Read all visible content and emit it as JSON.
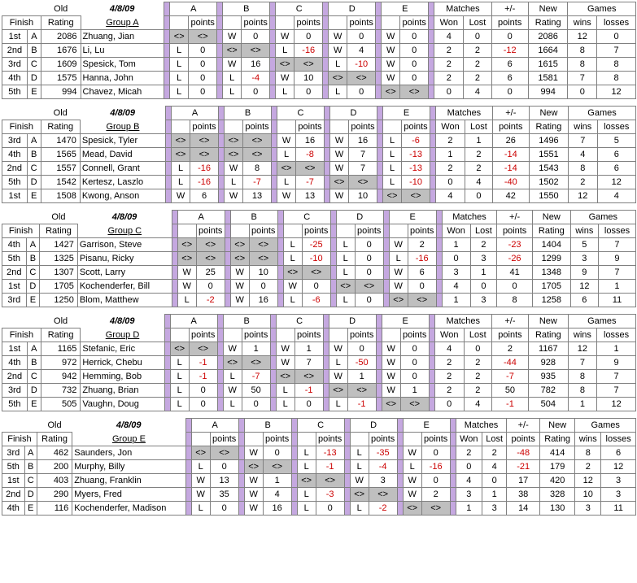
{
  "date": "4/8/09",
  "headers": {
    "finish": "Finish",
    "old": "Old",
    "rating": "Rating",
    "points": "points",
    "matches": "Matches",
    "won": "Won",
    "lost": "Lost",
    "pm": "+/-",
    "pm_points": "points",
    "new": "New",
    "new_rating": "Rating",
    "games": "Games",
    "wins": "wins",
    "losses": "losses"
  },
  "groups": [
    {
      "title": "Group A",
      "cols": [
        "A",
        "B",
        "C",
        "D",
        "E"
      ],
      "rows": [
        {
          "finish": "1st",
          "letter": "A",
          "rating": 2086,
          "name": "Zhuang, Jian",
          "cells": [
            [
              "<>",
              "<>",
              true
            ],
            [
              "W",
              "0",
              false
            ],
            [
              "W",
              "0",
              false
            ],
            [
              "W",
              "0",
              false
            ],
            [
              "W",
              "0",
              false
            ]
          ],
          "won": 4,
          "lost": 0,
          "pm": 0,
          "newr": 2086,
          "gw": 12,
          "gl": 0
        },
        {
          "finish": "2nd",
          "letter": "B",
          "rating": 1676,
          "name": "Li, Lu",
          "cells": [
            [
              "L",
              "0",
              false
            ],
            [
              "<>",
              "<>",
              true
            ],
            [
              "L",
              "-16",
              false
            ],
            [
              "W",
              "4",
              false
            ],
            [
              "W",
              "0",
              false
            ]
          ],
          "won": 2,
          "lost": 2,
          "pm": -12,
          "newr": 1664,
          "gw": 8,
          "gl": 7
        },
        {
          "finish": "3rd",
          "letter": "C",
          "rating": 1609,
          "name": "Spesick, Tom",
          "cells": [
            [
              "L",
              "0",
              false
            ],
            [
              "W",
              "16",
              false
            ],
            [
              "<>",
              "<>",
              true
            ],
            [
              "L",
              "-10",
              false
            ],
            [
              "W",
              "0",
              false
            ]
          ],
          "won": 2,
          "lost": 2,
          "pm": 6,
          "newr": 1615,
          "gw": 8,
          "gl": 8
        },
        {
          "finish": "4th",
          "letter": "D",
          "rating": 1575,
          "name": "Hanna, John",
          "cells": [
            [
              "L",
              "0",
              false
            ],
            [
              "L",
              "-4",
              false
            ],
            [
              "W",
              "10",
              false
            ],
            [
              "<>",
              "<>",
              true
            ],
            [
              "W",
              "0",
              false
            ]
          ],
          "won": 2,
          "lost": 2,
          "pm": 6,
          "newr": 1581,
          "gw": 7,
          "gl": 8
        },
        {
          "finish": "5th",
          "letter": "E",
          "rating": 994,
          "name": "Chavez, Micah",
          "cells": [
            [
              "L",
              "0",
              false
            ],
            [
              "L",
              "0",
              false
            ],
            [
              "L",
              "0",
              false
            ],
            [
              "L",
              "0",
              false
            ],
            [
              "<>",
              "<>",
              true
            ]
          ],
          "won": 0,
          "lost": 4,
          "pm": 0,
          "newr": 994,
          "gw": 0,
          "gl": 12
        }
      ]
    },
    {
      "title": "Group B",
      "cols": [
        "A",
        "B",
        "C",
        "D",
        "E"
      ],
      "rows": [
        {
          "finish": "3rd",
          "letter": "A",
          "rating": 1470,
          "name": "Spesick, Tyler",
          "cells": [
            [
              "<>",
              "<>",
              true
            ],
            [
              "<>",
              "<>",
              true
            ],
            [
              "W",
              "16",
              false
            ],
            [
              "W",
              "16",
              false
            ],
            [
              "L",
              "-6",
              false
            ]
          ],
          "won": 2,
          "lost": 1,
          "pm": 26,
          "newr": 1496,
          "gw": 7,
          "gl": 5
        },
        {
          "finish": "4th",
          "letter": "B",
          "rating": 1565,
          "name": "Mead, David",
          "cells": [
            [
              "<>",
              "<>",
              true
            ],
            [
              "<>",
              "<>",
              true
            ],
            [
              "L",
              "-8",
              false
            ],
            [
              "W",
              "7",
              false
            ],
            [
              "L",
              "-13",
              false
            ]
          ],
          "won": 1,
          "lost": 2,
          "pm": -14,
          "newr": 1551,
          "gw": 4,
          "gl": 6
        },
        {
          "finish": "2nd",
          "letter": "C",
          "rating": 1557,
          "name": "Connell, Grant",
          "cells": [
            [
              "L",
              "-16",
              false
            ],
            [
              "W",
              "8",
              false
            ],
            [
              "<>",
              "<>",
              true
            ],
            [
              "W",
              "7",
              false
            ],
            [
              "L",
              "-13",
              false
            ]
          ],
          "won": 2,
          "lost": 2,
          "pm": -14,
          "newr": 1543,
          "gw": 8,
          "gl": 6
        },
        {
          "finish": "5th",
          "letter": "D",
          "rating": 1542,
          "name": "Kertesz, Laszlo",
          "cells": [
            [
              "L",
              "-16",
              false
            ],
            [
              "L",
              "-7",
              false
            ],
            [
              "L",
              "-7",
              false
            ],
            [
              "<>",
              "<>",
              true
            ],
            [
              "L",
              "-10",
              false
            ]
          ],
          "won": 0,
          "lost": 4,
          "pm": -40,
          "newr": 1502,
          "gw": 2,
          "gl": 12
        },
        {
          "finish": "1st",
          "letter": "E",
          "rating": 1508,
          "name": "Kwong, Anson",
          "cells": [
            [
              "W",
              "6",
              false
            ],
            [
              "W",
              "13",
              false
            ],
            [
              "W",
              "13",
              false
            ],
            [
              "W",
              "10",
              false
            ],
            [
              "<>",
              "<>",
              true
            ]
          ],
          "won": 4,
          "lost": 0,
          "pm": 42,
          "newr": 1550,
          "gw": 12,
          "gl": 4
        }
      ]
    },
    {
      "title": "Group C",
      "cols": [
        "A",
        "B",
        "C",
        "D",
        "E"
      ],
      "rows": [
        {
          "finish": "4th",
          "letter": "A",
          "rating": 1427,
          "name": "Garrison, Steve",
          "cells": [
            [
              "<>",
              "<>",
              true
            ],
            [
              "<>",
              "<>",
              true
            ],
            [
              "L",
              "-25",
              false
            ],
            [
              "L",
              "0",
              false
            ],
            [
              "W",
              "2",
              false
            ]
          ],
          "won": 1,
          "lost": 2,
          "pm": -23,
          "newr": 1404,
          "gw": 5,
          "gl": 7
        },
        {
          "finish": "5th",
          "letter": "B",
          "rating": 1325,
          "name": "Pisanu, Ricky",
          "cells": [
            [
              "<>",
              "<>",
              true
            ],
            [
              "<>",
              "<>",
              true
            ],
            [
              "L",
              "-10",
              false
            ],
            [
              "L",
              "0",
              false
            ],
            [
              "L",
              "-16",
              false
            ]
          ],
          "won": 0,
          "lost": 3,
          "pm": -26,
          "newr": 1299,
          "gw": 3,
          "gl": 9
        },
        {
          "finish": "2nd",
          "letter": "C",
          "rating": 1307,
          "name": "Scott, Larry",
          "cells": [
            [
              "W",
              "25",
              false
            ],
            [
              "W",
              "10",
              false
            ],
            [
              "<>",
              "<>",
              true
            ],
            [
              "L",
              "0",
              false
            ],
            [
              "W",
              "6",
              false
            ]
          ],
          "won": 3,
          "lost": 1,
          "pm": 41,
          "newr": 1348,
          "gw": 9,
          "gl": 7
        },
        {
          "finish": "1st",
          "letter": "D",
          "rating": 1705,
          "name": "Kochenderfer, Bill",
          "cells": [
            [
              "W",
              "0",
              false
            ],
            [
              "W",
              "0",
              false
            ],
            [
              "W",
              "0",
              false
            ],
            [
              "<>",
              "<>",
              true
            ],
            [
              "W",
              "0",
              false
            ]
          ],
          "won": 4,
          "lost": 0,
          "pm": 0,
          "newr": 1705,
          "gw": 12,
          "gl": 1
        },
        {
          "finish": "3rd",
          "letter": "E",
          "rating": 1250,
          "name": "Blom, Matthew",
          "cells": [
            [
              "L",
              "-2",
              false
            ],
            [
              "W",
              "16",
              false
            ],
            [
              "L",
              "-6",
              false
            ],
            [
              "L",
              "0",
              false
            ],
            [
              "<>",
              "<>",
              true
            ]
          ],
          "won": 1,
          "lost": 3,
          "pm": 8,
          "newr": 1258,
          "gw": 6,
          "gl": 11
        }
      ]
    },
    {
      "title": "Group D",
      "cols": [
        "A",
        "B",
        "C",
        "D",
        "E"
      ],
      "rows": [
        {
          "finish": "1st",
          "letter": "A",
          "rating": 1165,
          "name": "Stefanic, Eric",
          "cells": [
            [
              "<>",
              "<>",
              true
            ],
            [
              "W",
              "1",
              false
            ],
            [
              "W",
              "1",
              false
            ],
            [
              "W",
              "0",
              false
            ],
            [
              "W",
              "0",
              false
            ]
          ],
          "won": 4,
          "lost": 0,
          "pm": 2,
          "newr": 1167,
          "gw": 12,
          "gl": 1
        },
        {
          "finish": "4th",
          "letter": "B",
          "rating": 972,
          "name": "Herrick, Chebu",
          "cells": [
            [
              "L",
              "-1",
              false
            ],
            [
              "<>",
              "<>",
              true
            ],
            [
              "W",
              "7",
              false
            ],
            [
              "L",
              "-50",
              false
            ],
            [
              "W",
              "0",
              false
            ]
          ],
          "won": 2,
          "lost": 2,
          "pm": -44,
          "newr": 928,
          "gw": 7,
          "gl": 9
        },
        {
          "finish": "2nd",
          "letter": "C",
          "rating": 942,
          "name": "Hemming, Bob",
          "cells": [
            [
              "L",
              "-1",
              false
            ],
            [
              "L",
              "-7",
              false
            ],
            [
              "<>",
              "<>",
              true
            ],
            [
              "W",
              "1",
              false
            ],
            [
              "W",
              "0",
              false
            ]
          ],
          "won": 2,
          "lost": 2,
          "pm": -7,
          "newr": 935,
          "gw": 8,
          "gl": 7
        },
        {
          "finish": "3rd",
          "letter": "D",
          "rating": 732,
          "name": "Zhuang, Brian",
          "cells": [
            [
              "L",
              "0",
              false
            ],
            [
              "W",
              "50",
              false
            ],
            [
              "L",
              "-1",
              false
            ],
            [
              "<>",
              "<>",
              true
            ],
            [
              "W",
              "1",
              false
            ]
          ],
          "won": 2,
          "lost": 2,
          "pm": 50,
          "newr": 782,
          "gw": 8,
          "gl": 7
        },
        {
          "finish": "5th",
          "letter": "E",
          "rating": 505,
          "name": "Vaughn, Doug",
          "cells": [
            [
              "L",
              "0",
              false
            ],
            [
              "L",
              "0",
              false
            ],
            [
              "L",
              "0",
              false
            ],
            [
              "L",
              "-1",
              false
            ],
            [
              "<>",
              "<>",
              true
            ]
          ],
          "won": 0,
          "lost": 4,
          "pm": -1,
          "newr": 504,
          "gw": 1,
          "gl": 12
        }
      ]
    },
    {
      "title": "Group E",
      "cols": [
        "A",
        "B",
        "C",
        "D",
        "E"
      ],
      "rows": [
        {
          "finish": "3rd",
          "letter": "A",
          "rating": 462,
          "name": "Saunders, Jon",
          "cells": [
            [
              "<>",
              "<>",
              true
            ],
            [
              "W",
              "0",
              false
            ],
            [
              "L",
              "-13",
              false
            ],
            [
              "L",
              "-35",
              false
            ],
            [
              "W",
              "0",
              false
            ]
          ],
          "won": 2,
          "lost": 2,
          "pm": -48,
          "newr": 414,
          "gw": 8,
          "gl": 6
        },
        {
          "finish": "5th",
          "letter": "B",
          "rating": 200,
          "name": "Murphy, Billy",
          "cells": [
            [
              "L",
              "0",
              false
            ],
            [
              "<>",
              "<>",
              true
            ],
            [
              "L",
              "-1",
              false
            ],
            [
              "L",
              "-4",
              false
            ],
            [
              "L",
              "-16",
              false
            ]
          ],
          "won": 0,
          "lost": 4,
          "pm": -21,
          "newr": 179,
          "gw": 2,
          "gl": 12
        },
        {
          "finish": "1st",
          "letter": "C",
          "rating": 403,
          "name": "Zhuang, Franklin",
          "cells": [
            [
              "W",
              "13",
              false
            ],
            [
              "W",
              "1",
              false
            ],
            [
              "<>",
              "<>",
              true
            ],
            [
              "W",
              "3",
              false
            ],
            [
              "W",
              "0",
              false
            ]
          ],
          "won": 4,
          "lost": 0,
          "pm": 17,
          "newr": 420,
          "gw": 12,
          "gl": 3
        },
        {
          "finish": "2nd",
          "letter": "D",
          "rating": 290,
          "name": "Myers, Fred",
          "cells": [
            [
              "W",
              "35",
              false
            ],
            [
              "W",
              "4",
              false
            ],
            [
              "L",
              "-3",
              false
            ],
            [
              "<>",
              "<>",
              true
            ],
            [
              "W",
              "2",
              false
            ]
          ],
          "won": 3,
          "lost": 1,
          "pm": 38,
          "newr": 328,
          "gw": 10,
          "gl": 3
        },
        {
          "finish": "4th",
          "letter": "E",
          "rating": 116,
          "name": "Kochenderfer, Madison",
          "cells": [
            [
              "L",
              "0",
              false
            ],
            [
              "W",
              "16",
              false
            ],
            [
              "L",
              "0",
              false
            ],
            [
              "L",
              "-2",
              false
            ],
            [
              "<>",
              "<>",
              true
            ]
          ],
          "won": 1,
          "lost": 3,
          "pm": 14,
          "newr": 130,
          "gw": 3,
          "gl": 11
        }
      ]
    }
  ]
}
